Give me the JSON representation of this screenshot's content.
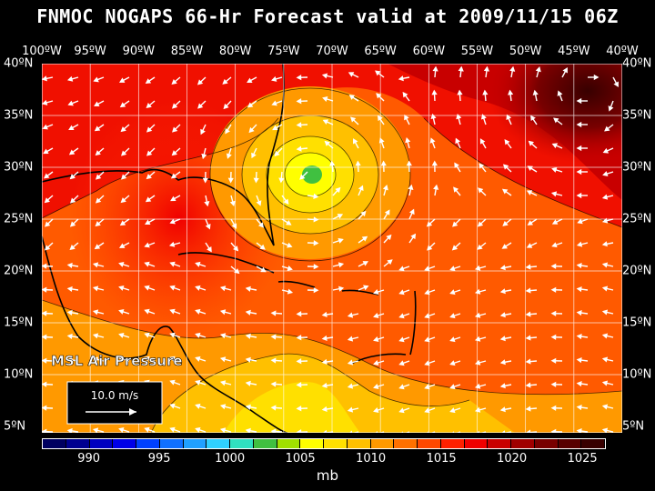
{
  "title": "FNMOC NOGAPS 66-Hr Forecast valid at 2009/11/15 06Z",
  "field_label": "MSL Air Pressure",
  "legend_vector_label": "10.0 m/s",
  "units": "mb",
  "lon_labels": [
    "100ºW",
    "95ºW",
    "90ºW",
    "85ºW",
    "80ºW",
    "75ºW",
    "70ºW",
    "65ºW",
    "60ºW",
    "55ºW",
    "50ºW",
    "45ºW",
    "40ºW"
  ],
  "lat_labels": [
    "40ºN",
    "35ºN",
    "30ºN",
    "25ºN",
    "20ºN",
    "15ºN",
    "10ºN",
    "5ºN"
  ],
  "colorbar_labels": [
    "990",
    "995",
    "1000",
    "1005",
    "1010",
    "1015",
    "1020",
    "1025"
  ],
  "colorbar_colors": [
    "#000060",
    "#000090",
    "#0000c0",
    "#0000e8",
    "#0040ff",
    "#1070ff",
    "#20a0ff",
    "#30d0ff",
    "#30e0c0",
    "#40c040",
    "#a0e000",
    "#ffff00",
    "#ffe000",
    "#ffc000",
    "#ff9900",
    "#ff7000",
    "#ff4800",
    "#ff2000",
    "#f00000",
    "#c80000",
    "#a00000",
    "#780000",
    "#580000",
    "#380000"
  ]
}
